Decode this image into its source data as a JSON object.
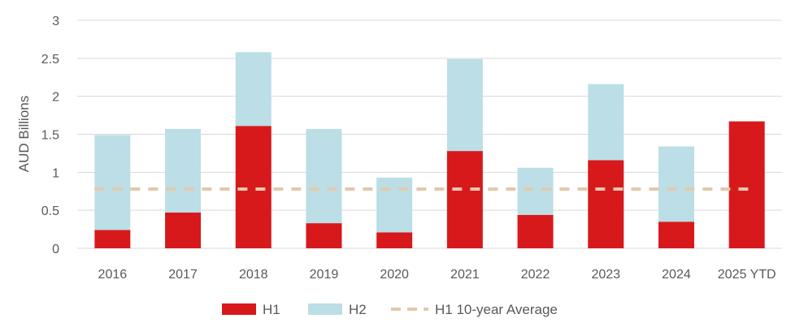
{
  "chart_data": {
    "type": "bar",
    "stacked": true,
    "categories": [
      "2016",
      "2017",
      "2018",
      "2019",
      "2020",
      "2021",
      "2022",
      "2023",
      "2024",
      "2025 YTD"
    ],
    "series": [
      {
        "name": "H1",
        "color": "#d7191c",
        "values": [
          0.24,
          0.47,
          1.61,
          0.33,
          0.21,
          1.28,
          0.44,
          1.16,
          0.35,
          1.67
        ]
      },
      {
        "name": "H2",
        "color": "#bcdee6",
        "values": [
          1.25,
          1.1,
          0.97,
          1.24,
          0.72,
          1.21,
          0.62,
          1.0,
          0.99,
          0
        ]
      }
    ],
    "reference_line": {
      "name": "H1 10-year Average",
      "value": 0.78,
      "color": "#e2c9aa",
      "style": "dashed"
    },
    "ylabel": "AUD Billions",
    "yticks": [
      "0",
      "0.5",
      "1",
      "1.5",
      "2",
      "2.5",
      "3"
    ],
    "ylim": [
      0,
      3
    ],
    "grid": true,
    "legend": "bottom"
  }
}
